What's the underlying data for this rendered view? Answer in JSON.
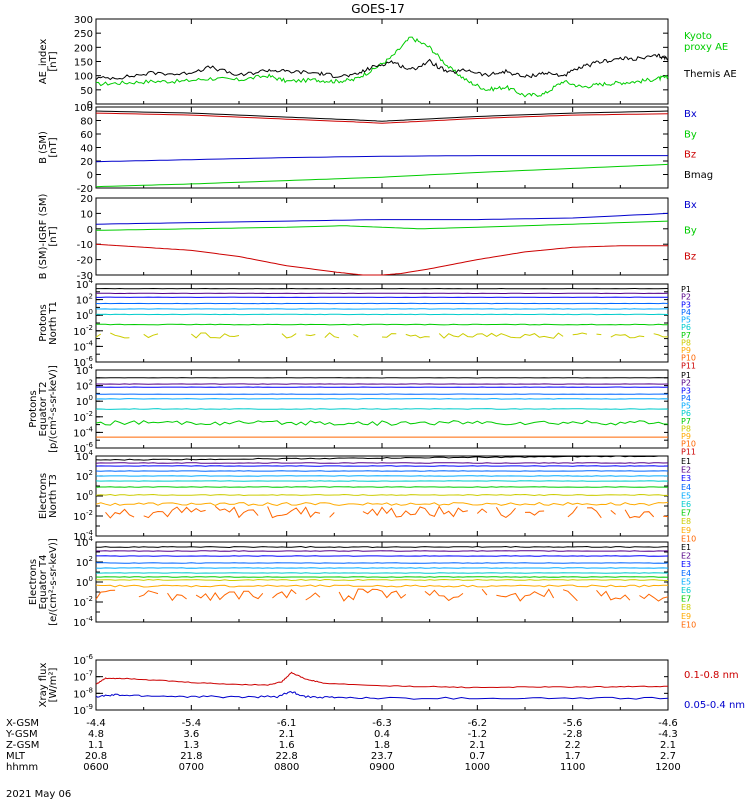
{
  "title": "GOES-17",
  "date": "2021 May 06",
  "colors": {
    "black": "#000000",
    "green": "#00cc00",
    "blue": "#0000cc",
    "red": "#cc0000",
    "P": [
      "#000000",
      "#550088",
      "#0000ff",
      "#0066ff",
      "#00aaff",
      "#00cccc",
      "#00cc00",
      "#cccc00",
      "#ffaa00",
      "#ff6600",
      "#cc0000"
    ],
    "E": [
      "#000000",
      "#550088",
      "#0000ff",
      "#0066ff",
      "#00aaff",
      "#00cccc",
      "#00cc00",
      "#cccc00",
      "#ffaa00",
      "#ff6600"
    ]
  },
  "chart_data": [
    {
      "id": "ae",
      "type": "line",
      "ylabel": "AE_index\n[nT]",
      "ylim": [
        0,
        300
      ],
      "yticks": [
        "300",
        "250",
        "200",
        "150",
        "100",
        "50",
        "0"
      ],
      "legend": [
        {
          "label": "Kyoto\nproxy AE",
          "color": "#00cc00"
        },
        {
          "label": "Themis AE",
          "color": "#000000"
        }
      ],
      "series": [
        {
          "name": "Kyoto proxy AE",
          "color": "#00cc00",
          "x": [
            0,
            0.3,
            0.6,
            0.9,
            1.2,
            1.5,
            1.8,
            2.0,
            2.3,
            2.5,
            2.7,
            2.9,
            3.1,
            3.3,
            3.5,
            3.7,
            3.9,
            4.1,
            4.3,
            4.5,
            4.7,
            4.9,
            5.1,
            5.3,
            5.5,
            5.7,
            5.9,
            6.0
          ],
          "y": [
            70,
            75,
            80,
            80,
            90,
            85,
            100,
            80,
            85,
            80,
            85,
            120,
            165,
            235,
            200,
            130,
            80,
            50,
            60,
            30,
            35,
            80,
            60,
            70,
            75,
            80,
            90,
            95
          ]
        },
        {
          "name": "Themis AE",
          "color": "#000000",
          "x": [
            0,
            0.3,
            0.6,
            0.9,
            1.2,
            1.5,
            1.8,
            2.0,
            2.3,
            2.5,
            2.7,
            2.9,
            3.1,
            3.3,
            3.5,
            3.7,
            3.9,
            4.1,
            4.3,
            4.5,
            4.7,
            4.9,
            5.1,
            5.3,
            5.5,
            5.7,
            5.9,
            6.0
          ],
          "y": [
            90,
            95,
            110,
            105,
            130,
            100,
            120,
            115,
            110,
            100,
            100,
            130,
            150,
            120,
            150,
            110,
            120,
            100,
            115,
            95,
            110,
            100,
            130,
            150,
            160,
            160,
            170,
            160
          ]
        }
      ]
    },
    {
      "id": "b",
      "type": "line",
      "ylabel": "B (SM)\n[nT]",
      "ylim": [
        -20,
        100
      ],
      "yticks": [
        "100",
        "80",
        "60",
        "40",
        "20",
        "0",
        "-20"
      ],
      "legend": [
        {
          "label": "Bx",
          "color": "#0000cc"
        },
        {
          "label": "By",
          "color": "#00cc00"
        },
        {
          "label": "Bz",
          "color": "#cc0000"
        },
        {
          "label": "Bmag",
          "color": "#000000"
        }
      ],
      "series": [
        {
          "name": "Bx",
          "color": "#0000cc",
          "x": [
            0,
            1,
            2,
            3,
            4,
            5,
            6
          ],
          "y": [
            19,
            22,
            25,
            27,
            28,
            28,
            28
          ]
        },
        {
          "name": "By",
          "color": "#00cc00",
          "x": [
            0,
            1,
            2,
            3,
            4,
            5,
            6
          ],
          "y": [
            -18,
            -14,
            -9,
            -4,
            3,
            9,
            15
          ]
        },
        {
          "name": "Bz",
          "color": "#cc0000",
          "x": [
            0,
            1,
            2,
            2.7,
            3,
            3.3,
            4,
            5,
            6
          ],
          "y": [
            91,
            88,
            82,
            78,
            76,
            78,
            83,
            88,
            90
          ]
        },
        {
          "name": "Bmag",
          "color": "#000000",
          "x": [
            0,
            1,
            2,
            2.7,
            3,
            3.3,
            4,
            5,
            6
          ],
          "y": [
            94,
            91,
            85,
            81,
            79,
            81,
            86,
            91,
            94
          ]
        }
      ]
    },
    {
      "id": "dbigrf",
      "type": "line",
      "ylabel": "B (SM)-IGRF (SM)\n[nT]",
      "ylim": [
        -30,
        20
      ],
      "yticks": [
        "20",
        "10",
        "0",
        "-10",
        "-20",
        "-30"
      ],
      "legend": [
        {
          "label": "Bx",
          "color": "#0000cc"
        },
        {
          "label": "By",
          "color": "#00cc00"
        },
        {
          "label": "Bz",
          "color": "#cc0000"
        }
      ],
      "series": [
        {
          "name": "Bx",
          "color": "#0000cc",
          "x": [
            0,
            1,
            2,
            3,
            4,
            5,
            6
          ],
          "y": [
            3,
            4,
            5,
            6,
            6,
            7,
            10
          ]
        },
        {
          "name": "By",
          "color": "#00cc00",
          "x": [
            0,
            1,
            2,
            2.6,
            3,
            3.4,
            4,
            5,
            6
          ],
          "y": [
            -1,
            0,
            1,
            2,
            1,
            0,
            1,
            3,
            5
          ]
        },
        {
          "name": "Bz",
          "color": "#cc0000",
          "x": [
            0,
            0.5,
            1,
            1.5,
            2,
            2.5,
            2.8,
            3,
            3.2,
            3.5,
            4,
            4.5,
            5,
            5.5,
            6
          ],
          "y": [
            -10,
            -12,
            -14,
            -18,
            -24,
            -28,
            -30,
            -30,
            -29,
            -26,
            -20,
            -15,
            -12,
            -11,
            -11
          ]
        }
      ]
    },
    {
      "id": "pn",
      "type": "line",
      "scale": "log",
      "ylabel": "Protons\nNorth T1",
      "ylim_exp": [
        -6,
        4
      ],
      "yticks_exp": [
        4,
        2,
        0,
        -2,
        -4,
        -6
      ],
      "channels": [
        "P1",
        "P2",
        "P3",
        "P4",
        "P5",
        "P6",
        "P7",
        "P8",
        "P9",
        "P10",
        "P11"
      ],
      "levels_exp": [
        3.4,
        2.8,
        2.3,
        1.5,
        0.8,
        0.1,
        -1.2,
        -2.6,
        null,
        null,
        null
      ],
      "noise": [
        0.02,
        0.02,
        0.02,
        0.02,
        0.02,
        0.03,
        0.05,
        0.35,
        0,
        0,
        0
      ]
    },
    {
      "id": "pe",
      "type": "line",
      "scale": "log",
      "ylabel": "Protons\nEquator T2\n[p/(cm²-s-sr-keV)]",
      "ylim_exp": [
        -6,
        4
      ],
      "yticks_exp": [
        4,
        2,
        0,
        -2,
        -4,
        -6
      ],
      "channels": [
        "P1",
        "P2",
        "P3",
        "P4",
        "P5",
        "P6",
        "P7",
        "P8",
        "P9",
        "P10",
        "P11"
      ],
      "levels_exp": [
        3.0,
        2.2,
        1.8,
        0.9,
        0.3,
        -1.0,
        -2.8,
        null,
        null,
        -4.6,
        null
      ],
      "noise": [
        0.02,
        0.02,
        0.02,
        0.02,
        0.03,
        0.05,
        0.3,
        0,
        0,
        0,
        0
      ]
    },
    {
      "id": "en",
      "type": "line",
      "scale": "log",
      "ylabel": "Electrons\nNorth T3",
      "ylim_exp": [
        -4,
        4
      ],
      "yticks_exp": [
        4,
        2,
        0,
        -2,
        -4
      ],
      "channels": [
        "E1",
        "E2",
        "E3",
        "E4",
        "E5",
        "E6",
        "E7",
        "E8",
        "E9",
        "E10"
      ],
      "levels_exp": [
        3.6,
        3.3,
        3.0,
        2.5,
        2.0,
        1.5,
        0.9,
        0.1,
        -0.8,
        -1.6
      ],
      "noise": [
        0.05,
        0.03,
        0.02,
        0.02,
        0.02,
        0.02,
        0.03,
        0.05,
        0.15,
        0.6
      ]
    },
    {
      "id": "ee",
      "type": "line",
      "scale": "log",
      "ylabel": "Electrons\nEquator T4\n[e/(cm²-s-sr-keV)]",
      "ylim_exp": [
        -4,
        4
      ],
      "yticks_exp": [
        4,
        2,
        0,
        -2,
        -4
      ],
      "channels": [
        "E1",
        "E2",
        "E3",
        "E4",
        "E5",
        "E6",
        "E7",
        "E8",
        "E9",
        "E10"
      ],
      "levels_exp": [
        3.5,
        3.1,
        2.6,
        1.9,
        1.4,
        0.9,
        0.5,
        0.2,
        -0.4,
        -1.3
      ],
      "noise": [
        0.05,
        0.03,
        0.02,
        0.02,
        0.02,
        0.02,
        0.03,
        0.05,
        0.1,
        0.6
      ]
    },
    {
      "id": "xray",
      "type": "line",
      "scale": "log",
      "ylabel": "Xray flux\n[W/m²]",
      "ylim_exp": [
        -9,
        -6
      ],
      "yticks_exp": [
        -6,
        -7,
        -8,
        -9
      ],
      "legend": [
        {
          "label": "0.1-0.8 nm",
          "color": "#cc0000"
        },
        {
          "label": "0.05-0.4 nm",
          "color": "#0000cc"
        }
      ],
      "series": [
        {
          "name": "0.1-0.8 nm",
          "color": "#cc0000",
          "x": [
            0,
            0.1,
            0.3,
            0.6,
            1.0,
            1.4,
            1.8,
            1.95,
            2.05,
            2.2,
            2.4,
            3,
            3.5,
            4,
            4.5,
            5,
            5.5,
            6
          ],
          "y": [
            -7.45,
            -7.1,
            -7.1,
            -7.2,
            -7.35,
            -7.45,
            -7.5,
            -7.3,
            -6.75,
            -7.15,
            -7.4,
            -7.55,
            -7.6,
            -7.65,
            -7.62,
            -7.62,
            -7.6,
            -7.58
          ]
        },
        {
          "name": "0.05-0.4 nm",
          "color": "#0000cc",
          "x": [
            0,
            0.2,
            0.5,
            1.0,
            1.5,
            1.9,
            2.05,
            2.2,
            2.5,
            3,
            4,
            5,
            6
          ],
          "y": [
            -8.2,
            -8.1,
            -8.15,
            -8.2,
            -8.22,
            -8.2,
            -7.9,
            -8.2,
            -8.25,
            -8.3,
            -8.3,
            -8.3,
            -8.3
          ]
        }
      ]
    }
  ],
  "bottom_axis": {
    "row_labels": [
      "X-GSM",
      "Y-GSM",
      "Z-GSM",
      "MLT",
      "hhmm"
    ],
    "columns": [
      [
        "-4.4",
        "4.8",
        "1.1",
        "20.8",
        "0600"
      ],
      [
        "-5.4",
        "3.6",
        "1.3",
        "21.8",
        "0700"
      ],
      [
        "-6.1",
        "2.1",
        "1.6",
        "22.8",
        "0800"
      ],
      [
        "-6.3",
        "0.4",
        "1.8",
        "23.7",
        "0900"
      ],
      [
        "-6.2",
        "-1.2",
        "2.1",
        "0.7",
        "1000"
      ],
      [
        "-5.6",
        "-2.8",
        "2.2",
        "1.7",
        "1100"
      ],
      [
        "-4.6",
        "-4.3",
        "2.1",
        "2.7",
        "1200"
      ]
    ]
  }
}
